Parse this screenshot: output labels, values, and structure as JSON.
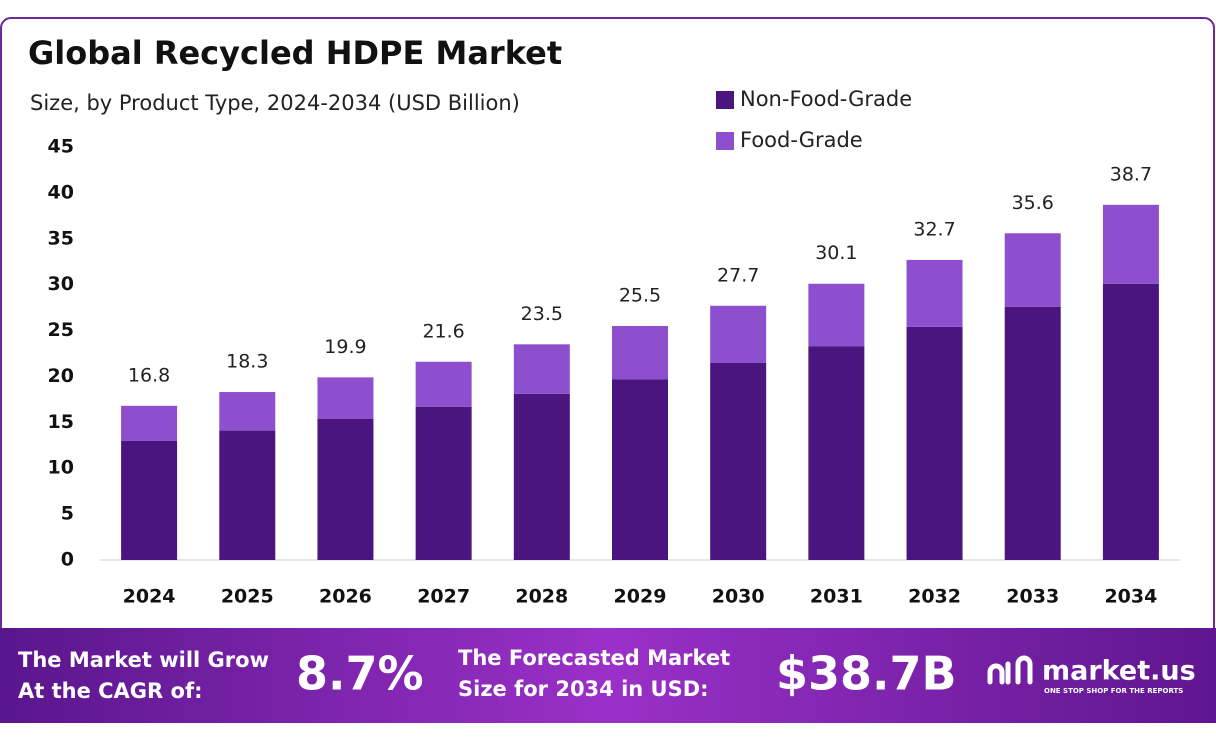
{
  "chart_data": {
    "type": "stacked-bar",
    "title": "Global Recycled HDPE Market",
    "subtitle": "Size, by Product Type, 2024-2034 (USD Billion)",
    "categories": [
      "2024",
      "2025",
      "2026",
      "2027",
      "2028",
      "2029",
      "2030",
      "2031",
      "2032",
      "2033",
      "2034"
    ],
    "series": [
      {
        "name": "Non-Food-Grade",
        "color": "#4b1580",
        "values": [
          13.0,
          14.1,
          15.4,
          16.7,
          18.1,
          19.7,
          21.5,
          23.3,
          25.4,
          27.6,
          30.1
        ]
      },
      {
        "name": "Food-Grade",
        "color": "#8e4fcf",
        "values": [
          3.8,
          4.2,
          4.5,
          4.9,
          5.4,
          5.8,
          6.2,
          6.8,
          7.3,
          8.0,
          8.6
        ]
      }
    ],
    "totals": [
      16.8,
      18.3,
      19.9,
      21.6,
      23.5,
      25.5,
      27.7,
      30.1,
      32.7,
      35.6,
      38.7
    ],
    "ylim": [
      0,
      45
    ],
    "yticks": [
      0,
      5,
      10,
      15,
      20,
      25,
      30,
      35,
      40,
      45
    ],
    "grid": false
  },
  "footer": {
    "cagr_text": [
      "The Market will Grow",
      "At the CAGR of:"
    ],
    "cagr_value": "8.7%",
    "forecast_text": [
      "The Forecasted Market",
      "Size for 2034 in USD:"
    ],
    "forecast_value": "$38.7B",
    "brand": "market.us",
    "tagline": "ONE STOP SHOP FOR THE REPORTS"
  }
}
